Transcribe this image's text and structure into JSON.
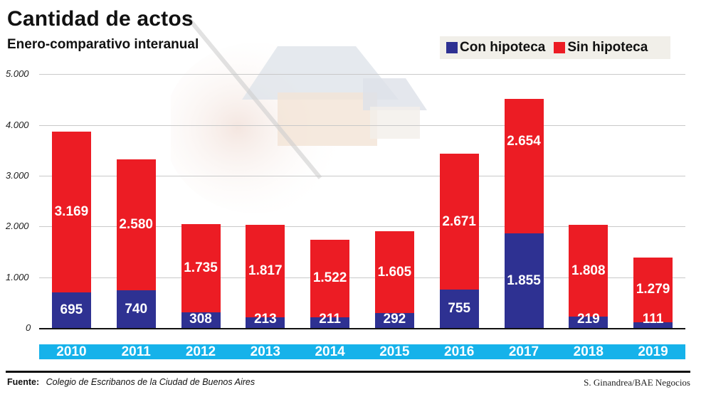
{
  "header": {
    "title": "Cantidad de actos",
    "subtitle": "Enero-comparativo interanual"
  },
  "legend": {
    "items": [
      {
        "label": "Con hipoteca",
        "color": "#2e3192"
      },
      {
        "label": "Sin hipoteca",
        "color": "#ec1c24"
      }
    ]
  },
  "axis": {
    "y_ticks": [
      "5.000",
      "4.000",
      "3.000",
      "2.000",
      "1.000",
      "0"
    ]
  },
  "bars": [
    {
      "year": "2010",
      "con": 695,
      "sin": 3169,
      "con_label": "695",
      "sin_label": "3.169"
    },
    {
      "year": "2011",
      "con": 740,
      "sin": 2580,
      "con_label": "740",
      "sin_label": "2.580"
    },
    {
      "year": "2012",
      "con": 308,
      "sin": 1735,
      "con_label": "308",
      "sin_label": "1.735"
    },
    {
      "year": "2013",
      "con": 213,
      "sin": 1817,
      "con_label": "213",
      "sin_label": "1.817"
    },
    {
      "year": "2014",
      "con": 211,
      "sin": 1522,
      "con_label": "211",
      "sin_label": "1.522"
    },
    {
      "year": "2015",
      "con": 292,
      "sin": 1605,
      "con_label": "292",
      "sin_label": "1.605"
    },
    {
      "year": "2016",
      "con": 755,
      "sin": 2671,
      "con_label": "755",
      "sin_label": "2.671"
    },
    {
      "year": "2017",
      "con": 1855,
      "sin": 2654,
      "con_label": "1.855",
      "sin_label": "2.654"
    },
    {
      "year": "2018",
      "con": 219,
      "sin": 1808,
      "con_label": "219",
      "sin_label": "1.808"
    },
    {
      "year": "2019",
      "con": 111,
      "sin": 1279,
      "con_label": "111",
      "sin_label": "1.279"
    }
  ],
  "footer": {
    "source_label": "Fuente:",
    "source_text": "Colegio de Escribanos de la Ciudad de Buenos Aires",
    "credit": "S. Ginandrea/BAE Negocios"
  },
  "colors": {
    "con_hipoteca": "#2e3192",
    "sin_hipoteca": "#ec1c24",
    "year_band": "#16b2ea"
  },
  "chart_data": {
    "type": "bar",
    "stacked": true,
    "title": "Cantidad de actos",
    "subtitle": "Enero-comparativo interanual",
    "xlabel": "",
    "ylabel": "",
    "categories": [
      "2010",
      "2011",
      "2012",
      "2013",
      "2014",
      "2015",
      "2016",
      "2017",
      "2018",
      "2019"
    ],
    "series": [
      {
        "name": "Con hipoteca",
        "color": "#2e3192",
        "values": [
          695,
          740,
          308,
          213,
          211,
          292,
          755,
          1855,
          219,
          111
        ]
      },
      {
        "name": "Sin hipoteca",
        "color": "#ec1c24",
        "values": [
          3169,
          2580,
          1735,
          1817,
          1522,
          1605,
          2671,
          2654,
          1808,
          1279
        ]
      }
    ],
    "ylim": [
      0,
      5000
    ],
    "yticks": [
      0,
      1000,
      2000,
      3000,
      4000,
      5000
    ],
    "ytick_labels": [
      "0",
      "1.000",
      "2.000",
      "3.000",
      "4.000",
      "5.000"
    ],
    "grid": true,
    "legend_position": "top-right",
    "source": "Fuente: Colegio de Escribanos de la Ciudad de Buenos Aires",
    "credit": "S. Ginandrea/BAE Negocios"
  }
}
